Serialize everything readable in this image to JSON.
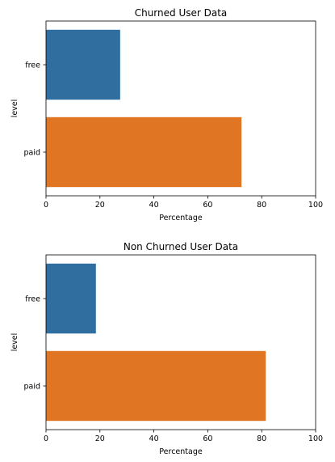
{
  "chart_data": [
    {
      "type": "bar",
      "orientation": "horizontal",
      "title": "Churned User Data",
      "xlabel": "Percentage",
      "ylabel": "level",
      "categories": [
        "free",
        "paid"
      ],
      "values": [
        27.5,
        72.5
      ],
      "colors": [
        "#2f6e9f",
        "#e07624"
      ],
      "xlim": [
        0,
        100
      ],
      "xticks": [
        0,
        20,
        40,
        60,
        80,
        100
      ],
      "grid": false,
      "legend": false
    },
    {
      "type": "bar",
      "orientation": "horizontal",
      "title": "Non Churned User Data",
      "xlabel": "Percentage",
      "ylabel": "level",
      "categories": [
        "free",
        "paid"
      ],
      "values": [
        18.5,
        81.5
      ],
      "colors": [
        "#2f6e9f",
        "#e07624"
      ],
      "xlim": [
        0,
        100
      ],
      "xticks": [
        0,
        20,
        40,
        60,
        80,
        100
      ],
      "grid": false,
      "legend": false
    }
  ]
}
